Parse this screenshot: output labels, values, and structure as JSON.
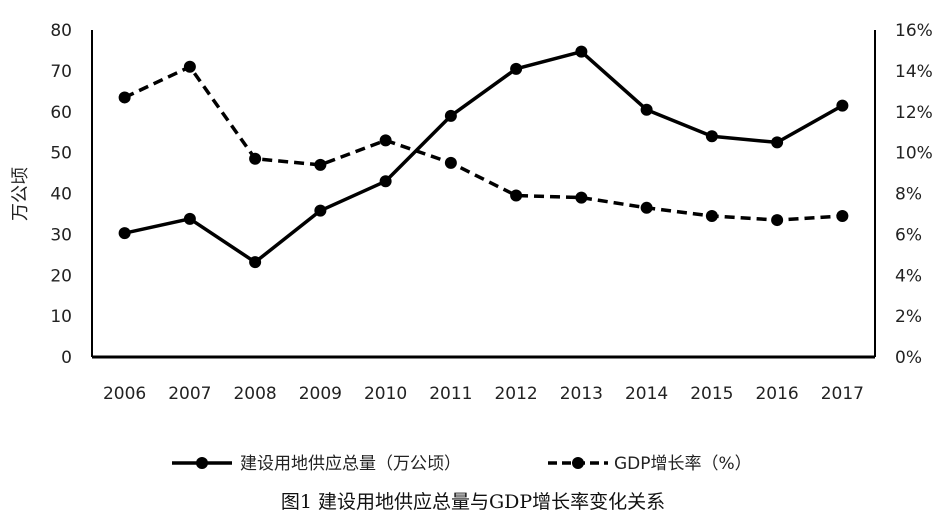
{
  "chart_data": {
    "type": "line",
    "x": [
      "2006",
      "2007",
      "2008",
      "2009",
      "2010",
      "2011",
      "2012",
      "2013",
      "2014",
      "2015",
      "2016",
      "2017"
    ],
    "series": [
      {
        "name": "建设用地供应总量（万公顷）",
        "axis": "left",
        "style": "solid",
        "values": [
          30.3,
          33.8,
          23.2,
          35.8,
          43.0,
          59.0,
          70.5,
          74.7,
          60.5,
          54.0,
          52.5,
          61.5
        ]
      },
      {
        "name": "GDP增长率（%）",
        "axis": "right",
        "style": "dashed",
        "values": [
          12.7,
          14.2,
          9.7,
          9.4,
          10.6,
          9.5,
          7.9,
          7.8,
          7.3,
          6.9,
          6.7,
          6.9
        ]
      }
    ],
    "ylabel": "万公顷",
    "ylim": [
      0,
      80
    ],
    "yticks": [
      "0",
      "10",
      "20",
      "30",
      "40",
      "50",
      "60",
      "70",
      "80"
    ],
    "y2lim": [
      0,
      16
    ],
    "y2ticks": [
      "0%",
      "2%",
      "4%",
      "6%",
      "8%",
      "10%",
      "12%",
      "14%",
      "16%"
    ],
    "legend_position": "bottom",
    "caption": "图1   建设用地供应总量与GDP增长率变化关系",
    "colors": {
      "line": "#000000"
    }
  }
}
